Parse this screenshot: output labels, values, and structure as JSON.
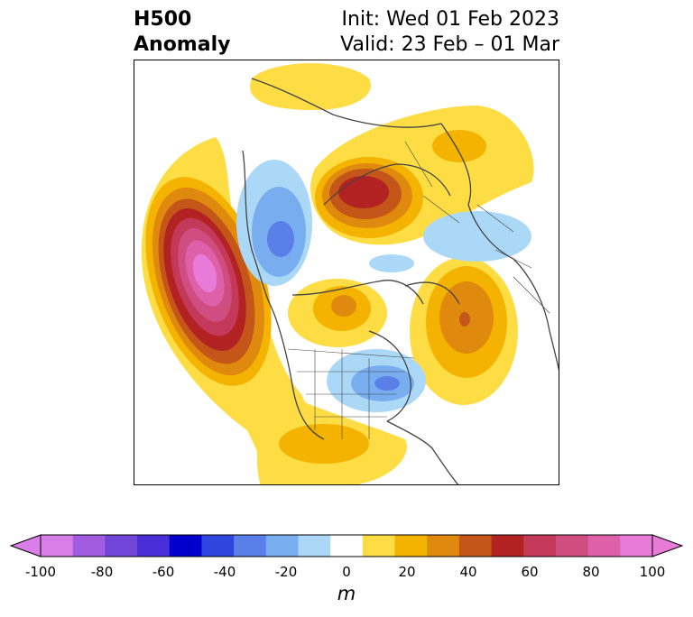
{
  "title": {
    "left_line1": "H500",
    "left_line2": "Anomaly",
    "right_line1": "Init: Wed 01 Feb 2023",
    "right_line2": "Valid: 23 Feb – 01 Mar"
  },
  "colorbar": {
    "unit": "m",
    "ticks": [
      "-100",
      "-80",
      "-60",
      "-40",
      "-20",
      "0",
      "20",
      "40",
      "60",
      "80",
      "100"
    ],
    "tick_values": [
      -100,
      -80,
      -60,
      -40,
      -20,
      0,
      20,
      40,
      60,
      80,
      100
    ],
    "colors": [
      "#d97de8",
      "#a25ce0",
      "#7045d8",
      "#4a2ed8",
      "#0000cd",
      "#2f45dd",
      "#5a7fe8",
      "#78aef0",
      "#acd8f8",
      "#ffffff",
      "#fddc44",
      "#f3b300",
      "#e0890f",
      "#c45619",
      "#b22222",
      "#c4395a",
      "#cf4d80",
      "#dd60a8",
      "#e87bd8"
    ],
    "min_color": "#d97de8",
    "max_color": "#e87bd8"
  }
}
